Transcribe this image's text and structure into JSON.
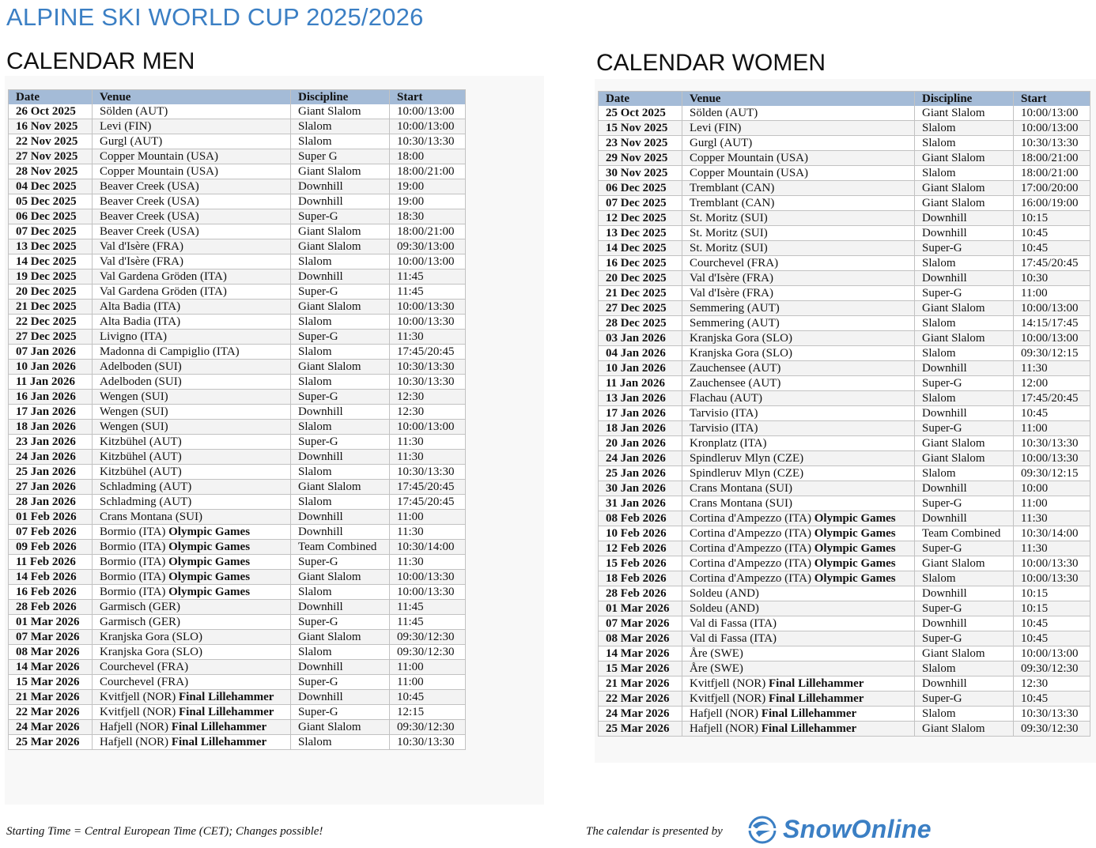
{
  "main_title": "ALPINE SKI WORLD CUP 2025/2026",
  "men": {
    "title": "CALENDAR MEN",
    "headers": [
      "Date",
      "Venue",
      "Discipline",
      "Start"
    ],
    "rows": [
      {
        "date": "26 Oct 2025",
        "venue": "Sölden (AUT)",
        "extra": "",
        "discipline": "Giant Slalom",
        "start": "10:00/13:00"
      },
      {
        "date": "16 Nov 2025",
        "venue": "Levi (FIN)",
        "extra": "",
        "discipline": "Slalom",
        "start": "10:00/13:00"
      },
      {
        "date": "22 Nov 2025",
        "venue": "Gurgl (AUT)",
        "extra": "",
        "discipline": "Slalom",
        "start": "10:30/13:30"
      },
      {
        "date": "27 Nov 2025",
        "venue": "Copper Mountain (USA)",
        "extra": "",
        "discipline": "Super G",
        "start": "18:00"
      },
      {
        "date": "28 Nov 2025",
        "venue": "Copper Mountain (USA)",
        "extra": "",
        "discipline": "Giant Slalom",
        "start": "18:00/21:00"
      },
      {
        "date": "04 Dec 2025",
        "venue": "Beaver Creek (USA)",
        "extra": "",
        "discipline": "Downhill",
        "start": "19:00"
      },
      {
        "date": "05 Dec 2025",
        "venue": "Beaver Creek (USA)",
        "extra": "",
        "discipline": "Downhill",
        "start": "19:00"
      },
      {
        "date": "06 Dec 2025",
        "venue": "Beaver Creek (USA)",
        "extra": "",
        "discipline": "Super-G",
        "start": "18:30"
      },
      {
        "date": "07 Dec 2025",
        "venue": "Beaver Creek (USA)",
        "extra": "",
        "discipline": "Giant Slalom",
        "start": "18:00/21:00"
      },
      {
        "date": "13 Dec 2025",
        "venue": "Val d'Isère (FRA)",
        "extra": "",
        "discipline": "Giant Slalom",
        "start": "09:30/13:00"
      },
      {
        "date": "14 Dec 2025",
        "venue": "Val d'Isère (FRA)",
        "extra": "",
        "discipline": "Slalom",
        "start": "10:00/13:00"
      },
      {
        "date": "19 Dec 2025",
        "venue": "Val Gardena Gröden (ITA)",
        "extra": "",
        "discipline": "Downhill",
        "start": "11:45"
      },
      {
        "date": "20 Dec 2025",
        "venue": "Val Gardena Gröden (ITA)",
        "extra": "",
        "discipline": "Super-G",
        "start": "11:45"
      },
      {
        "date": "21 Dec 2025",
        "venue": "Alta Badia (ITA)",
        "extra": "",
        "discipline": "Giant Slalom",
        "start": "10:00/13:30"
      },
      {
        "date": "22 Dec 2025",
        "venue": "Alta Badia (ITA)",
        "extra": "",
        "discipline": "Slalom",
        "start": "10:00/13:30"
      },
      {
        "date": "27 Dec 2025",
        "venue": "Livigno (ITA)",
        "extra": "",
        "discipline": "Super-G",
        "start": "11:30"
      },
      {
        "date": "07 Jan 2026",
        "venue": "Madonna di Campiglio (ITA)",
        "extra": "",
        "discipline": "Slalom",
        "start": "17:45/20:45"
      },
      {
        "date": "10 Jan 2026",
        "venue": "Adelboden (SUI)",
        "extra": "",
        "discipline": "Giant Slalom",
        "start": "10:30/13:30"
      },
      {
        "date": "11 Jan 2026",
        "venue": "Adelboden (SUI)",
        "extra": "",
        "discipline": "Slalom",
        "start": "10:30/13:30"
      },
      {
        "date": "16 Jan 2026",
        "venue": "Wengen (SUI)",
        "extra": "",
        "discipline": "Super-G",
        "start": "12:30"
      },
      {
        "date": "17 Jan 2026",
        "venue": "Wengen (SUI)",
        "extra": "",
        "discipline": "Downhill",
        "start": "12:30"
      },
      {
        "date": "18 Jan 2026",
        "venue": "Wengen (SUI)",
        "extra": "",
        "discipline": "Slalom",
        "start": "10:00/13:00"
      },
      {
        "date": "23 Jan 2026",
        "venue": "Kitzbühel (AUT)",
        "extra": "",
        "discipline": "Super-G",
        "start": "11:30"
      },
      {
        "date": "24 Jan 2026",
        "venue": "Kitzbühel (AUT)",
        "extra": "",
        "discipline": "Downhill",
        "start": "11:30"
      },
      {
        "date": "25 Jan 2026",
        "venue": "Kitzbühel (AUT)",
        "extra": "",
        "discipline": "Slalom",
        "start": "10:30/13:30"
      },
      {
        "date": "27 Jan 2026",
        "venue": "Schladming (AUT)",
        "extra": "",
        "discipline": "Giant Slalom",
        "start": "17:45/20:45"
      },
      {
        "date": "28 Jan 2026",
        "venue": "Schladming (AUT)",
        "extra": "",
        "discipline": "Slalom",
        "start": "17:45/20:45"
      },
      {
        "date": "01 Feb 2026",
        "venue": "Crans Montana (SUI)",
        "extra": "",
        "discipline": "Downhill",
        "start": "11:00"
      },
      {
        "date": "07 Feb 2026",
        "venue": "Bormio (ITA)",
        "extra": "Olympic Games",
        "discipline": "Downhill",
        "start": "11:30"
      },
      {
        "date": "09 Feb 2026",
        "venue": "Bormio (ITA)",
        "extra": "Olympic Games",
        "discipline": "Team Combined",
        "start": "10:30/14:00"
      },
      {
        "date": "11 Feb 2026",
        "venue": "Bormio (ITA)",
        "extra": "Olympic Games",
        "discipline": "Super-G",
        "start": "11:30"
      },
      {
        "date": "14 Feb 2026",
        "venue": "Bormio (ITA)",
        "extra": "Olympic Games",
        "discipline": "Giant Slalom",
        "start": "10:00/13:30"
      },
      {
        "date": "16 Feb 2026",
        "venue": "Bormio (ITA)",
        "extra": "Olympic Games",
        "discipline": "Slalom",
        "start": "10:00/13:30"
      },
      {
        "date": "28 Feb 2026",
        "venue": "Garmisch (GER)",
        "extra": "",
        "discipline": "Downhill",
        "start": "11:45"
      },
      {
        "date": "01 Mar 2026",
        "venue": "Garmisch (GER)",
        "extra": "",
        "discipline": "Super-G",
        "start": "11:45"
      },
      {
        "date": "07 Mar 2026",
        "venue": "Kranjska Gora (SLO)",
        "extra": "",
        "discipline": "Giant Slalom",
        "start": "09:30/12:30"
      },
      {
        "date": "08 Mar 2026",
        "venue": "Kranjska Gora (SLO)",
        "extra": "",
        "discipline": "Slalom",
        "start": "09:30/12:30"
      },
      {
        "date": "14 Mar 2026",
        "venue": "Courchevel (FRA)",
        "extra": "",
        "discipline": "Downhill",
        "start": "11:00"
      },
      {
        "date": "15 Mar 2026",
        "venue": "Courchevel (FRA)",
        "extra": "",
        "discipline": "Super-G",
        "start": "11:00"
      },
      {
        "date": "21 Mar 2026",
        "venue": "Kvitfjell (NOR)",
        "extra": "Final Lillehammer",
        "discipline": "Downhill",
        "start": "10:45"
      },
      {
        "date": "22 Mar 2026",
        "venue": "Kvitfjell (NOR)",
        "extra": "Final Lillehammer",
        "discipline": "Super-G",
        "start": "12:15"
      },
      {
        "date": "24 Mar 2026",
        "venue": "Hafjell (NOR)",
        "extra": "Final Lillehammer",
        "discipline": "Giant Slalom",
        "start": "09:30/12:30"
      },
      {
        "date": "25 Mar 2026",
        "venue": "Hafjell (NOR)",
        "extra": "Final Lillehammer",
        "discipline": "Slalom",
        "start": "10:30/13:30"
      }
    ]
  },
  "women": {
    "title": "CALENDAR WOMEN",
    "headers": [
      "Date",
      "Venue",
      "Discipline",
      "Start"
    ],
    "rows": [
      {
        "date": "25 Oct 2025",
        "venue": "Sölden (AUT)",
        "extra": "",
        "discipline": "Giant Slalom",
        "start": "10:00/13:00"
      },
      {
        "date": "15 Nov 2025",
        "venue": "Levi (FIN)",
        "extra": "",
        "discipline": "Slalom",
        "start": "10:00/13:00"
      },
      {
        "date": "23 Nov 2025",
        "venue": "Gurgl (AUT)",
        "extra": "",
        "discipline": "Slalom",
        "start": "10:30/13:30"
      },
      {
        "date": "29 Nov 2025",
        "venue": "Copper Mountain (USA)",
        "extra": "",
        "discipline": "Giant Slalom",
        "start": "18:00/21:00"
      },
      {
        "date": "30 Nov 2025",
        "venue": "Copper Mountain (USA)",
        "extra": "",
        "discipline": "Slalom",
        "start": "18:00/21:00"
      },
      {
        "date": "06 Dec 2025",
        "venue": "Tremblant (CAN)",
        "extra": "",
        "discipline": "Giant Slalom",
        "start": "17:00/20:00"
      },
      {
        "date": "07 Dec 2025",
        "venue": "Tremblant (CAN)",
        "extra": "",
        "discipline": "Giant Slalom",
        "start": "16:00/19:00"
      },
      {
        "date": "12 Dec 2025",
        "venue": "St. Moritz (SUI)",
        "extra": "",
        "discipline": "Downhill",
        "start": "10:15"
      },
      {
        "date": "13 Dec 2025",
        "venue": "St. Moritz (SUI)",
        "extra": "",
        "discipline": "Downhill",
        "start": "10:45"
      },
      {
        "date": "14 Dec 2025",
        "venue": "St. Moritz (SUI)",
        "extra": "",
        "discipline": "Super-G",
        "start": "10:45"
      },
      {
        "date": "16 Dec 2025",
        "venue": "Courchevel (FRA)",
        "extra": "",
        "discipline": "Slalom",
        "start": "17:45/20:45"
      },
      {
        "date": "20 Dec 2025",
        "venue": "Val d'Isère (FRA)",
        "extra": "",
        "discipline": "Downhill",
        "start": "10:30"
      },
      {
        "date": "21 Dec 2025",
        "venue": "Val d'Isère (FRA)",
        "extra": "",
        "discipline": "Super-G",
        "start": "11:00"
      },
      {
        "date": "27 Dec 2025",
        "venue": "Semmering (AUT)",
        "extra": "",
        "discipline": "Giant Slalom",
        "start": "10:00/13:00"
      },
      {
        "date": "28 Dec 2025",
        "venue": "Semmering (AUT)",
        "extra": "",
        "discipline": "Slalom",
        "start": "14:15/17:45"
      },
      {
        "date": "03 Jan 2026",
        "venue": "Kranjska Gora (SLO)",
        "extra": "",
        "discipline": "Giant Slalom",
        "start": "10:00/13:00"
      },
      {
        "date": "04 Jan 2026",
        "venue": "Kranjska Gora (SLO)",
        "extra": "",
        "discipline": "Slalom",
        "start": "09:30/12:15"
      },
      {
        "date": "10 Jan 2026",
        "venue": "Zauchensee (AUT)",
        "extra": "",
        "discipline": "Downhill",
        "start": "11:30"
      },
      {
        "date": "11 Jan 2026",
        "venue": "Zauchensee (AUT)",
        "extra": "",
        "discipline": "Super-G",
        "start": "12:00"
      },
      {
        "date": "13 Jan 2026",
        "venue": "Flachau (AUT)",
        "extra": "",
        "discipline": "Slalom",
        "start": "17:45/20:45"
      },
      {
        "date": "17 Jan 2026",
        "venue": "Tarvisio (ITA)",
        "extra": "",
        "discipline": "Downhill",
        "start": "10:45"
      },
      {
        "date": "18 Jan 2026",
        "venue": "Tarvisio (ITA)",
        "extra": "",
        "discipline": "Super-G",
        "start": "11:00"
      },
      {
        "date": "20 Jan 2026",
        "venue": "Kronplatz (ITA)",
        "extra": "",
        "discipline": "Giant Slalom",
        "start": "10:30/13:30"
      },
      {
        "date": "24 Jan 2026",
        "venue": "Spindleruv Mlyn (CZE)",
        "extra": "",
        "discipline": "Giant Slalom",
        "start": "10:00/13:30"
      },
      {
        "date": "25 Jan 2026",
        "venue": "Spindleruv Mlyn (CZE)",
        "extra": "",
        "discipline": "Slalom",
        "start": "09:30/12:15"
      },
      {
        "date": "30 Jan 2026",
        "venue": "Crans Montana (SUI)",
        "extra": "",
        "discipline": "Downhill",
        "start": "10:00"
      },
      {
        "date": "31 Jan 2026",
        "venue": "Crans Montana (SUI)",
        "extra": "",
        "discipline": "Super-G",
        "start": "11:00"
      },
      {
        "date": "08 Feb 2026",
        "venue": "Cortina d'Ampezzo (ITA)",
        "extra": "Olympic Games",
        "discipline": "Downhill",
        "start": "11:30"
      },
      {
        "date": "10 Feb 2026",
        "venue": "Cortina d'Ampezzo (ITA)",
        "extra": "Olympic Games",
        "discipline": "Team Combined",
        "start": "10:30/14:00"
      },
      {
        "date": "12 Feb 2026",
        "venue": "Cortina d'Ampezzo (ITA)",
        "extra": "Olympic Games",
        "discipline": "Super-G",
        "start": "11:30"
      },
      {
        "date": "15 Feb 2026",
        "venue": "Cortina d'Ampezzo (ITA)",
        "extra": "Olympic Games",
        "discipline": "Giant Slalom",
        "start": "10:00/13:30"
      },
      {
        "date": "18 Feb 2026",
        "venue": "Cortina d'Ampezzo (ITA)",
        "extra": "Olympic Games",
        "discipline": "Slalom",
        "start": "10:00/13:30"
      },
      {
        "date": "28 Feb 2026",
        "venue": "Soldeu (AND)",
        "extra": "",
        "discipline": "Downhill",
        "start": "10:15"
      },
      {
        "date": "01 Mar 2026",
        "venue": "Soldeu (AND)",
        "extra": "",
        "discipline": "Super-G",
        "start": "10:15"
      },
      {
        "date": "07 Mar 2026",
        "venue": "Val di Fassa (ITA)",
        "extra": "",
        "discipline": "Downhill",
        "start": "10:45"
      },
      {
        "date": "08 Mar 2026",
        "venue": "Val di Fassa (ITA)",
        "extra": "",
        "discipline": "Super-G",
        "start": "10:45"
      },
      {
        "date": "14 Mar 2026",
        "venue": "Åre (SWE)",
        "extra": "",
        "discipline": "Giant Slalom",
        "start": "10:00/13:00"
      },
      {
        "date": "15 Mar 2026",
        "venue": "Åre (SWE)",
        "extra": "",
        "discipline": "Slalom",
        "start": "09:30/12:30"
      },
      {
        "date": "21 Mar 2026",
        "venue": "Kvitfjell (NOR)",
        "extra": "Final Lillehammer",
        "discipline": "Downhill",
        "start": "12:30"
      },
      {
        "date": "22 Mar 2026",
        "venue": "Kvitfjell (NOR)",
        "extra": "Final Lillehammer",
        "discipline": "Super-G",
        "start": "10:45"
      },
      {
        "date": "24 Mar 2026",
        "venue": "Hafjell (NOR)",
        "extra": "Final Lillehammer",
        "discipline": "Slalom",
        "start": "10:30/13:30"
      },
      {
        "date": "25 Mar 2026",
        "venue": "Hafjell (NOR)",
        "extra": "Final Lillehammer",
        "discipline": "Giant Slalom",
        "start": "09:30/12:30"
      }
    ]
  },
  "footer": {
    "note": "Starting Time = Central European Time (CET); Changes possible!",
    "presented_by": "The calendar is presented by",
    "logo_text": "SnowOnline"
  },
  "colors": {
    "title_blue": "#3b7fc4",
    "header_bg": "#a4bbd7",
    "stripe": "#f3f3f3"
  }
}
